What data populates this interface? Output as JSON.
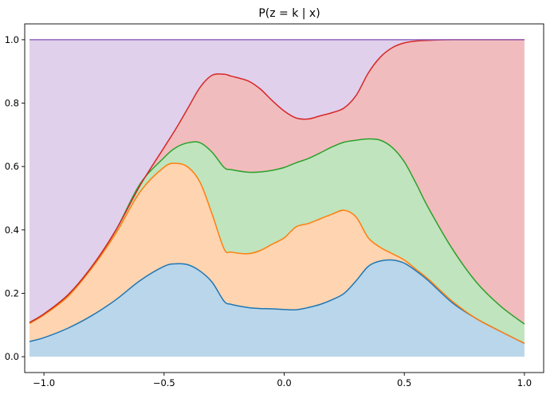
{
  "chart_data": {
    "type": "area",
    "stacked": true,
    "title": "P(z = k | x)",
    "xlabel": "",
    "ylabel": "",
    "xlim": [
      -1.08,
      1.08
    ],
    "ylim": [
      -0.05,
      1.05
    ],
    "xticks": [
      -1.0,
      -0.5,
      0.0,
      0.5,
      1.0
    ],
    "xtick_labels": [
      "−1.0",
      "−0.5",
      "0.0",
      "0.5",
      "1.0"
    ],
    "yticks": [
      0.0,
      0.2,
      0.4,
      0.6,
      0.8,
      1.0
    ],
    "ytick_labels": [
      "0.0",
      "0.2",
      "0.4",
      "0.6",
      "0.8",
      "1.0"
    ],
    "grid": false,
    "legend": "none",
    "x": [
      -1.06,
      -1.0,
      -0.9,
      -0.8,
      -0.7,
      -0.6,
      -0.5,
      -0.45,
      -0.4,
      -0.35,
      -0.3,
      -0.25,
      -0.22,
      -0.15,
      -0.1,
      -0.05,
      0.0,
      0.05,
      0.1,
      0.15,
      0.2,
      0.25,
      0.3,
      0.35,
      0.4,
      0.45,
      0.5,
      0.55,
      0.6,
      0.7,
      0.8,
      0.9,
      1.0
    ],
    "series": [
      {
        "color": "#1f77b4",
        "fill": "#bad6ea",
        "cumulative": [
          0.048,
          0.06,
          0.09,
          0.13,
          0.18,
          0.24,
          0.285,
          0.293,
          0.29,
          0.27,
          0.235,
          0.175,
          0.165,
          0.155,
          0.152,
          0.151,
          0.149,
          0.148,
          0.155,
          0.165,
          0.18,
          0.2,
          0.24,
          0.285,
          0.302,
          0.305,
          0.295,
          0.27,
          0.24,
          0.17,
          0.12,
          0.08,
          0.042
        ]
      },
      {
        "color": "#ff7f0e",
        "fill": "#ffd4b0",
        "cumulative": [
          0.105,
          0.132,
          0.19,
          0.28,
          0.39,
          0.52,
          0.598,
          0.61,
          0.598,
          0.55,
          0.45,
          0.34,
          0.33,
          0.325,
          0.335,
          0.355,
          0.375,
          0.41,
          0.42,
          0.435,
          0.45,
          0.462,
          0.44,
          0.375,
          0.345,
          0.325,
          0.305,
          0.275,
          0.245,
          0.175,
          0.12,
          0.08,
          0.042
        ]
      },
      {
        "color": "#2ca02c",
        "fill": "#c0e4be",
        "cumulative": [
          0.108,
          0.135,
          0.195,
          0.285,
          0.4,
          0.545,
          0.628,
          0.66,
          0.675,
          0.675,
          0.645,
          0.597,
          0.59,
          0.582,
          0.583,
          0.588,
          0.597,
          0.612,
          0.625,
          0.643,
          0.662,
          0.677,
          0.683,
          0.687,
          0.683,
          0.66,
          0.615,
          0.545,
          0.47,
          0.34,
          0.235,
          0.16,
          0.103
        ]
      },
      {
        "color": "#d62728",
        "fill": "#f1bcbd",
        "cumulative": [
          0.108,
          0.135,
          0.195,
          0.285,
          0.4,
          0.54,
          0.66,
          0.72,
          0.785,
          0.85,
          0.888,
          0.891,
          0.885,
          0.87,
          0.845,
          0.808,
          0.775,
          0.753,
          0.75,
          0.76,
          0.77,
          0.785,
          0.825,
          0.895,
          0.945,
          0.975,
          0.99,
          0.996,
          0.998,
          1.0,
          1.0,
          1.0,
          1.0
        ]
      },
      {
        "color": "#9467bd",
        "fill": "#e0d0eb",
        "cumulative": [
          1.0,
          1.0,
          1.0,
          1.0,
          1.0,
          1.0,
          1.0,
          1.0,
          1.0,
          1.0,
          1.0,
          1.0,
          1.0,
          1.0,
          1.0,
          1.0,
          1.0,
          1.0,
          1.0,
          1.0,
          1.0,
          1.0,
          1.0,
          1.0,
          1.0,
          1.0,
          1.0,
          1.0,
          1.0,
          1.0,
          1.0,
          1.0,
          1.0
        ]
      }
    ]
  }
}
